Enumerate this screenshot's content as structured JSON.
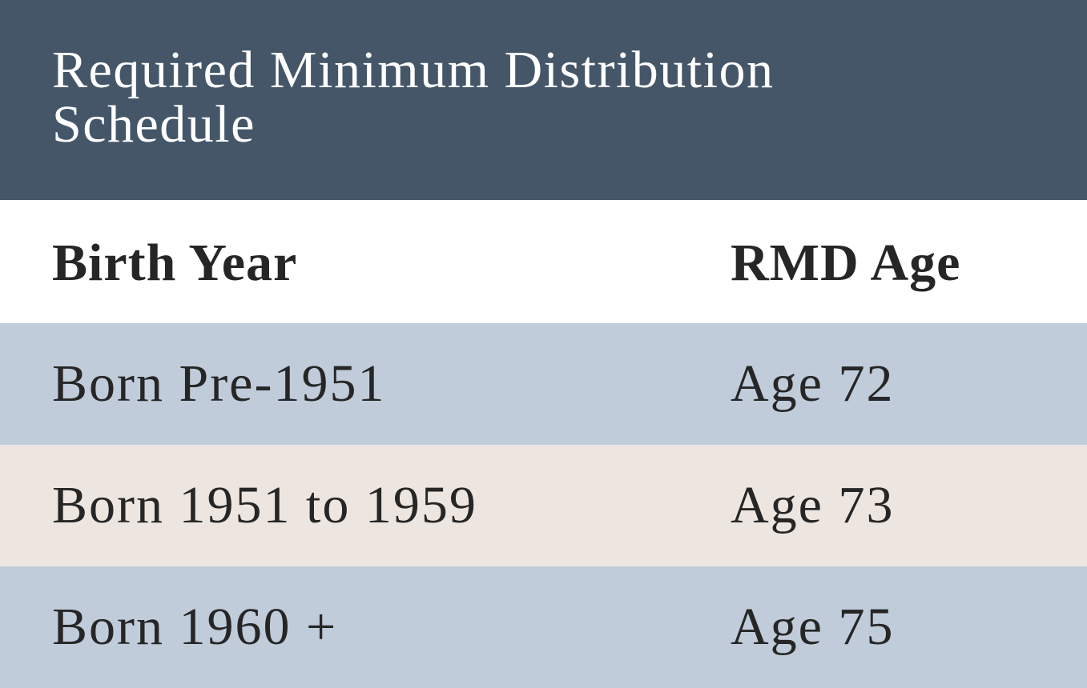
{
  "title": "Required Minimum Distribution Schedule",
  "columns": {
    "birth_year": "Birth Year",
    "rmd_age": "RMD Age"
  },
  "rows": [
    {
      "birth_year": "Born Pre-1951",
      "rmd_age": "Age 72",
      "background": "#c0ccda"
    },
    {
      "birth_year": "Born 1951 to 1959",
      "rmd_age": "Age 73",
      "background": "#ede6e0"
    },
    {
      "birth_year": "Born 1960 +",
      "rmd_age": "Age 75",
      "background": "#c0ccda"
    }
  ],
  "colors": {
    "title_bar": "#455669",
    "title_text": "#ffffff",
    "body_text": "#262626",
    "row_blue": "#c0ccda",
    "row_beige": "#ede6e0"
  }
}
